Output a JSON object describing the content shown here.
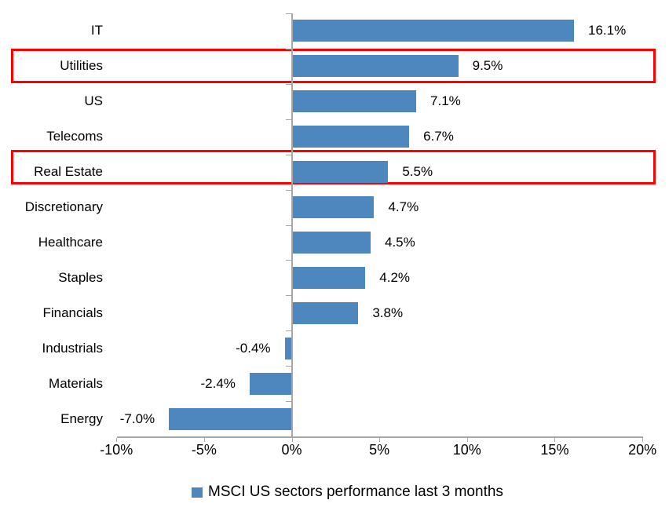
{
  "chart_data": {
    "type": "bar",
    "orientation": "horizontal",
    "title": "",
    "categories": [
      "IT",
      "Utilities",
      "US",
      "Telecoms",
      "Real Estate",
      "Discretionary",
      "Healthcare",
      "Staples",
      "Financials",
      "Industrials",
      "Materials",
      "Energy"
    ],
    "values": [
      16.1,
      9.5,
      7.1,
      6.7,
      5.5,
      4.7,
      4.5,
      4.2,
      3.8,
      -0.4,
      -2.4,
      -7.0
    ],
    "value_labels": [
      "16.1%",
      "9.5%",
      "7.1%",
      "6.7%",
      "5.5%",
      "4.7%",
      "4.5%",
      "4.2%",
      "3.8%",
      "-0.4%",
      "-2.4%",
      "-7.0%"
    ],
    "xlim": [
      -10,
      20
    ],
    "x_tick_values": [
      -10,
      -5,
      0,
      5,
      10,
      15,
      20
    ],
    "x_tick_labels": [
      "-10%",
      "-5%",
      "0%",
      "5%",
      "10%",
      "15%",
      "20%"
    ],
    "grid": false,
    "legend_position": "bottom",
    "series": [
      {
        "name": "MSCI US sectors performance last 3 months",
        "color": "#4E87BD"
      }
    ],
    "highlights": [
      {
        "category": "Utilities",
        "offset_y": 0
      },
      {
        "category": "Real Estate",
        "offset_y": -6
      }
    ],
    "highlight_color": "#FF0000",
    "axis_color": "#A6A6A6",
    "text_color": "#000000"
  },
  "legend": {
    "label": "MSCI US sectors performance last 3 months",
    "marker_color": "#4E87BD"
  }
}
